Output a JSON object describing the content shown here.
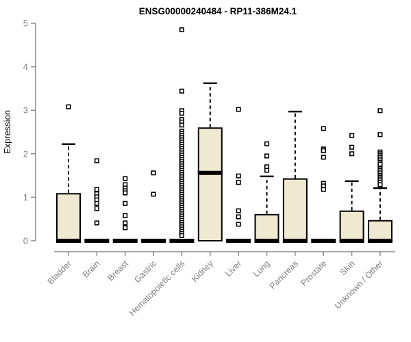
{
  "chart_data": {
    "type": "boxplot",
    "title": "ENSG00000240484 - RP11-386M24.1",
    "ylabel": "Expression",
    "xlabel": "",
    "ylim": [
      0,
      5
    ],
    "yticks": [
      0,
      1,
      2,
      3,
      4,
      5
    ],
    "grid": false,
    "legend": "none",
    "categories": [
      "Bladder",
      "Brain",
      "Breast",
      "Gastric",
      "Hematopoietic cells",
      "Kidney",
      "Liver",
      "Lung",
      "Pancreas",
      "Prostate",
      "Skin",
      "Unknown / Other"
    ],
    "boxes": [
      {
        "whisker_low": 0,
        "q1": 0,
        "median": 0,
        "q3": 1.08,
        "whisker_high": 2.22,
        "outliers": [
          3.08
        ]
      },
      {
        "whisker_low": 0,
        "q1": 0,
        "median": 0,
        "q3": 0,
        "whisker_high": 0,
        "outliers": [
          1.84,
          1.18,
          1.08,
          1.01,
          0.94,
          0.86,
          0.74,
          0.41
        ]
      },
      {
        "whisker_low": 0,
        "q1": 0,
        "median": 0,
        "q3": 0,
        "whisker_high": 0,
        "outliers": [
          1.43,
          1.29,
          1.21,
          1.15,
          1.1,
          0.86,
          0.58,
          0.41,
          0.3
        ]
      },
      {
        "whisker_low": 0,
        "q1": 0,
        "median": 0,
        "q3": 0,
        "whisker_high": 0,
        "outliers": [
          1.56,
          1.07
        ]
      },
      {
        "whisker_low": 0,
        "q1": 0,
        "median": 0,
        "q3": 0,
        "whisker_high": 0,
        "outliers": [
          4.85,
          3.44,
          2.99,
          2.93,
          2.79,
          2.73,
          2.66,
          2.52,
          2.47,
          2.42,
          2.37,
          2.32,
          2.27,
          2.22,
          2.17,
          2.12,
          2.07,
          2.02,
          1.97,
          1.92,
          1.87,
          1.82,
          1.77,
          1.72,
          1.67,
          1.62,
          1.57,
          1.52,
          1.47,
          1.42,
          1.37,
          1.32,
          1.27,
          1.22,
          1.17,
          1.12,
          1.07,
          1.02,
          0.97,
          0.92,
          0.87,
          0.82,
          0.77,
          0.72,
          0.67,
          0.62,
          0.57,
          0.52,
          0.47,
          0.42,
          0.37,
          0.32,
          0.27,
          0.22,
          0.17,
          0.12
        ]
      },
      {
        "whisker_low": 0,
        "q1": 0,
        "median": 1.56,
        "q3": 2.59,
        "whisker_high": 3.62,
        "outliers": []
      },
      {
        "whisker_low": 0,
        "q1": 0,
        "median": 0,
        "q3": 0,
        "whisker_high": 0,
        "outliers": [
          3.02,
          1.49,
          1.34,
          0.69,
          0.55,
          0.38
        ]
      },
      {
        "whisker_low": 0,
        "q1": 0,
        "median": 0,
        "q3": 0.6,
        "whisker_high": 1.48,
        "outliers": [
          2.23,
          1.95,
          1.7,
          1.62
        ]
      },
      {
        "whisker_low": 0,
        "q1": 0,
        "median": 0,
        "q3": 1.42,
        "whisker_high": 2.97,
        "outliers": []
      },
      {
        "whisker_low": 0,
        "q1": 0,
        "median": 0,
        "q3": 0,
        "whisker_high": 0,
        "outliers": [
          2.58,
          2.11,
          2.07,
          1.92,
          1.32,
          1.26,
          1.18
        ]
      },
      {
        "whisker_low": 0,
        "q1": 0,
        "median": 0,
        "q3": 0.68,
        "whisker_high": 1.37,
        "outliers": [
          2.42,
          2.15,
          2.0
        ]
      },
      {
        "whisker_low": 0,
        "q1": 0,
        "median": 0,
        "q3": 0.46,
        "whisker_high": 1.21,
        "outliers": [
          2.99,
          2.44,
          2.04,
          2.0,
          1.96,
          1.92,
          1.88,
          1.84,
          1.8,
          1.76,
          1.66,
          1.62,
          1.58,
          1.54,
          1.5,
          1.46,
          1.42,
          1.38,
          1.34,
          1.29
        ]
      }
    ],
    "colors": {
      "background": "#ffffff",
      "box_fill": "#EFE9D1",
      "box_stroke": "#000000",
      "median": "#000000",
      "whisker": "#000000",
      "outlier_stroke": "#000000",
      "outlier_fill": "#ffffff",
      "axis": "#8a8a8a",
      "tick_label": "#7f7f7f",
      "title": "#000000"
    }
  }
}
